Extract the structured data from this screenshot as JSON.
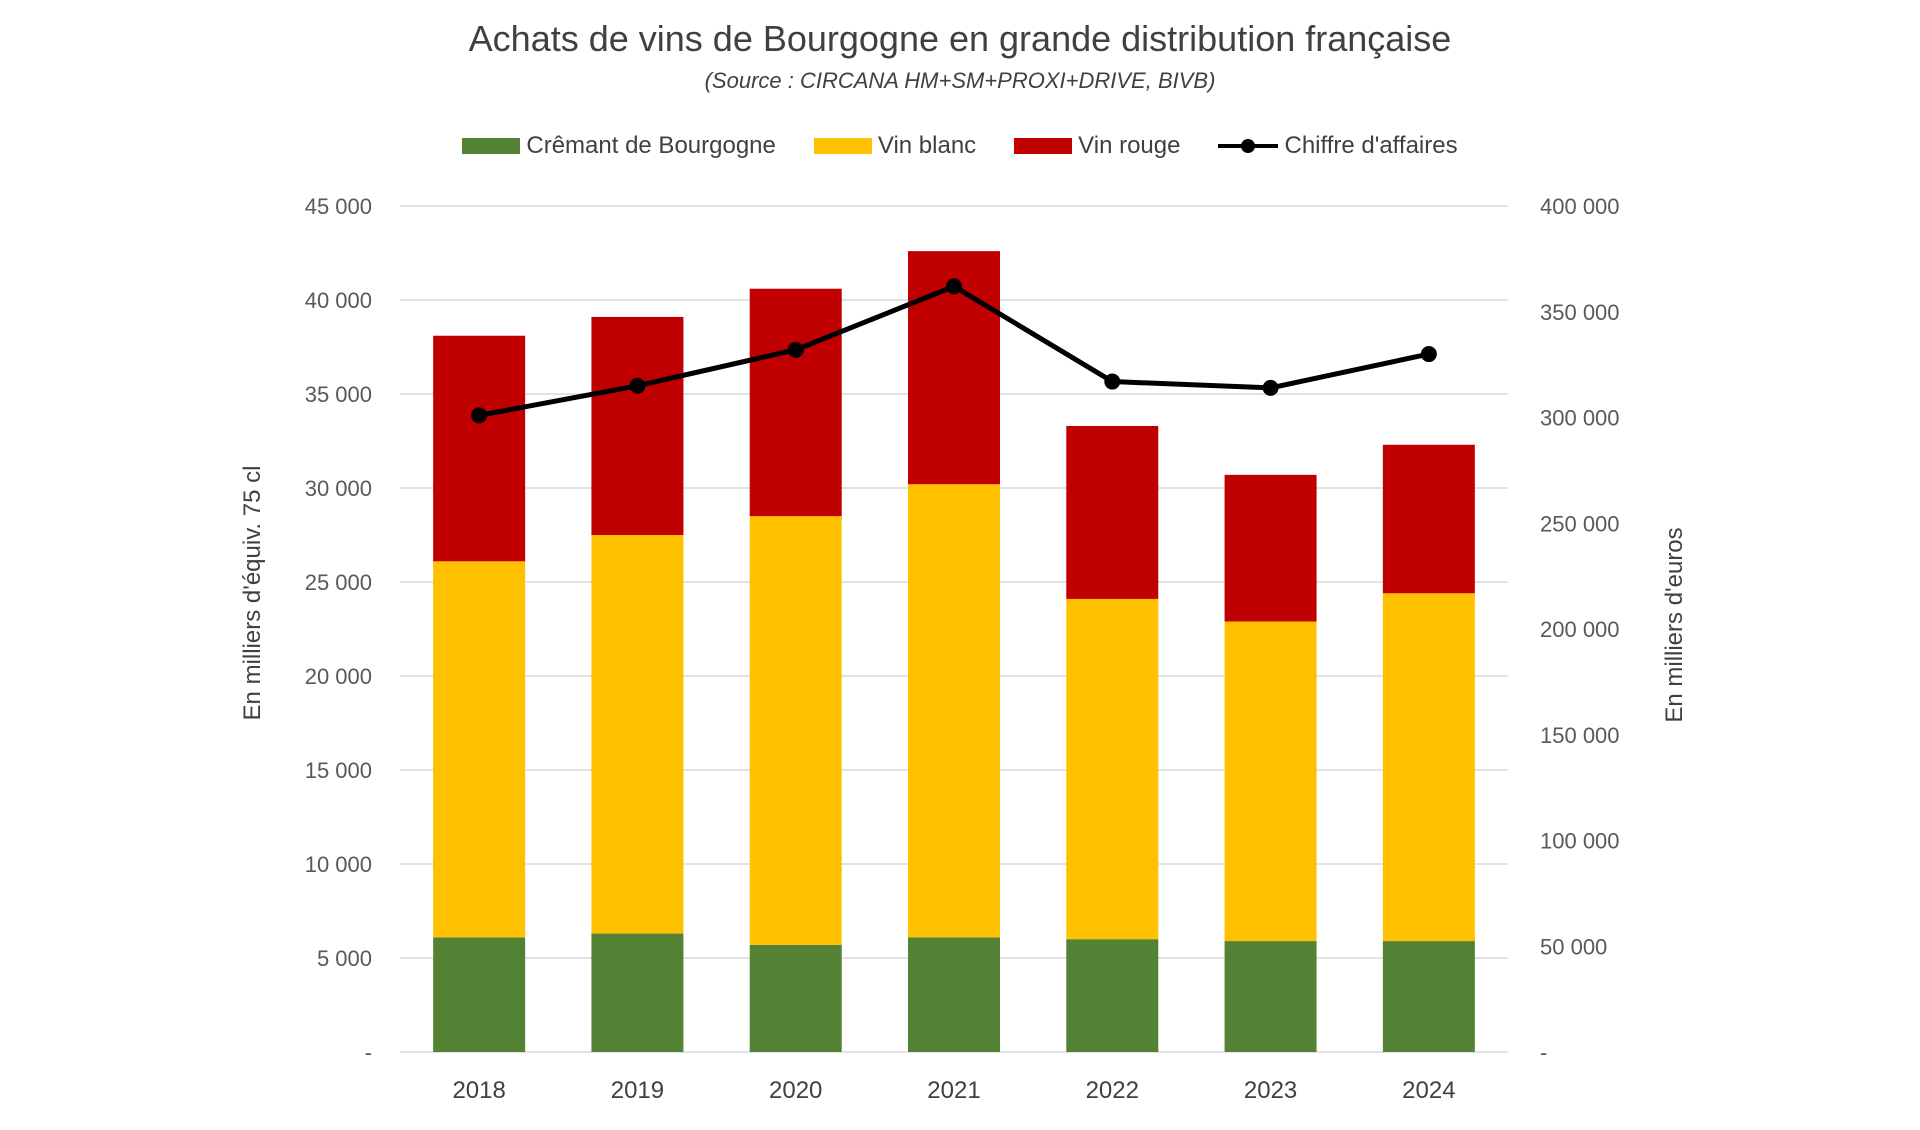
{
  "chart_data": {
    "type": "bar",
    "stacked": true,
    "title": "Achats de vins de Bourgogne en grande distribution française",
    "subtitle": "(Source : CIRCANA HM+SM+PROXI+DRIVE, BIVB)",
    "categories": [
      "2018",
      "2019",
      "2020",
      "2021",
      "2022",
      "2023",
      "2024"
    ],
    "series": [
      {
        "name": "Crêmant de Bourgogne",
        "type": "bar",
        "axis": "left",
        "color": "#548235",
        "values": [
          6100,
          6300,
          5700,
          6100,
          6000,
          5900,
          5900
        ]
      },
      {
        "name": "Vin blanc",
        "type": "bar",
        "axis": "left",
        "color": "#FFC000",
        "values": [
          20000,
          21200,
          22800,
          24100,
          18100,
          17000,
          18500
        ]
      },
      {
        "name": "Vin rouge",
        "type": "bar",
        "axis": "left",
        "color": "#C00000",
        "values": [
          12000,
          11600,
          12100,
          12400,
          9200,
          7800,
          7900
        ]
      },
      {
        "name": "Chiffre d'affaires",
        "type": "line",
        "axis": "right",
        "color": "#000000",
        "values": [
          301000,
          315000,
          332000,
          362000,
          317000,
          314000,
          330000
        ]
      }
    ],
    "ylabel": "En milliers d'équiv. 75 cl",
    "y2label": "En milliers d'euros",
    "ylim": [
      0,
      45000
    ],
    "y2lim": [
      0,
      400000
    ],
    "yticks": [
      "-",
      "5 000",
      "10 000",
      "15 000",
      "20 000",
      "25 000",
      "30 000",
      "35 000",
      "40 000",
      "45 000"
    ],
    "y2ticks": [
      "-",
      "50 000",
      "100 000",
      "150 000",
      "200 000",
      "250 000",
      "300 000",
      "350 000",
      "400 000"
    ],
    "grid": true,
    "legend_position": "top"
  }
}
